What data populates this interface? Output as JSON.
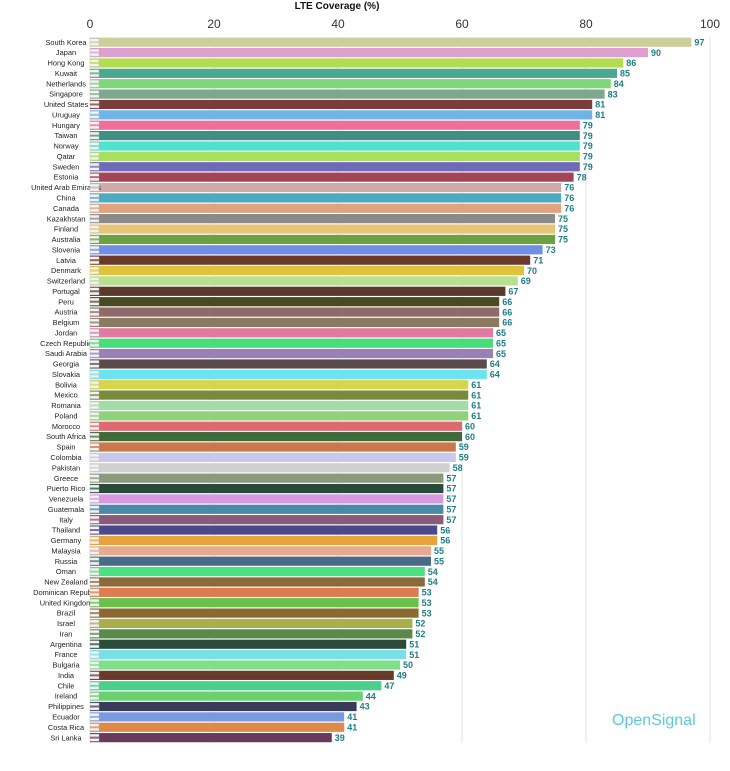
{
  "brand": "OpenSignal",
  "chart_data": {
    "type": "bar",
    "orientation": "horizontal",
    "title": "LTE Coverage (%)",
    "xlim": [
      0,
      100
    ],
    "xticks": [
      0,
      20,
      40,
      60,
      80,
      100
    ],
    "grid": true,
    "categories": [
      "South Korea",
      "Japan",
      "Hong Kong",
      "Kuwait",
      "Netherlands",
      "Singapore",
      "United States",
      "Uruguay",
      "Hungary",
      "Taiwan",
      "Norway",
      "Qatar",
      "Sweden",
      "Estonia",
      "United Arab Emirates",
      "China",
      "Canada",
      "Kazakhstan",
      "Finland",
      "Australia",
      "Slovenia",
      "Latvia",
      "Denmark",
      "Switzerland",
      "Portugal",
      "Peru",
      "Austria",
      "Belgium",
      "Jordan",
      "Czech Republic",
      "Saudi Arabia",
      "Georgia",
      "Slovakia",
      "Bolivia",
      "Mexico",
      "Romania",
      "Poland",
      "Morocco",
      "South Africa",
      "Spain",
      "Colombia",
      "Pakistan",
      "Greece",
      "Puerto Rico",
      "Venezuela",
      "Guatemala",
      "Italy",
      "Thailand",
      "Germany",
      "Malaysia",
      "Russia",
      "Oman",
      "New Zealand",
      "Dominican Republic",
      "United Kingdom",
      "Brazil",
      "Israel",
      "Iran",
      "Argentina",
      "France",
      "Bulgaria",
      "India",
      "Chile",
      "Ireland",
      "Philippines",
      "Ecuador",
      "Costa Rica",
      "Sri Lanka"
    ],
    "values": [
      97,
      90,
      86,
      85,
      84,
      83,
      81,
      81,
      79,
      79,
      79,
      79,
      79,
      78,
      76,
      76,
      76,
      75,
      75,
      75,
      73,
      71,
      70,
      69,
      67,
      66,
      66,
      66,
      65,
      65,
      65,
      64,
      64,
      61,
      61,
      61,
      61,
      60,
      60,
      59,
      59,
      58,
      57,
      57,
      57,
      57,
      57,
      56,
      56,
      55,
      55,
      54,
      54,
      53,
      53,
      53,
      52,
      52,
      51,
      51,
      50,
      49,
      47,
      44,
      43,
      41,
      41,
      39
    ],
    "colors": [
      "#cccf9a",
      "#de9fd0",
      "#b3dd50",
      "#4aa88f",
      "#7fd67a",
      "#7da88d",
      "#7a3e3a",
      "#6eb4e6",
      "#ee6f9a",
      "#3f8f82",
      "#4fe2cf",
      "#a8e05e",
      "#6f6ab8",
      "#a34457",
      "#cfaaa6",
      "#4fa9c1",
      "#e3a27e",
      "#8a8a8a",
      "#e6c57a",
      "#6aa23f",
      "#6f8ee6",
      "#6b3a2a",
      "#e0c23f",
      "#b9e08e",
      "#5a3a2a",
      "#4a4a22",
      "#8f6a6a",
      "#8a7a60",
      "#e07aa0",
      "#47de7a",
      "#9a80b9",
      "#5a4a4a",
      "#6ae4ef",
      "#d4d64c",
      "#7a8a3c",
      "#a3dda6",
      "#8fd27a",
      "#e06870",
      "#3f6a3a",
      "#c8784a",
      "#c9c9ee",
      "#d0d0d0",
      "#8a9a7a",
      "#2a4a3a",
      "#da9ae0",
      "#4a8aa8",
      "#8a5a7a",
      "#4a4a8a",
      "#e6a23c",
      "#e6aa90",
      "#4a6a8a",
      "#4ae080",
      "#8a6a3a",
      "#e07a50",
      "#6ac04a",
      "#8a6a30",
      "#a8b04a",
      "#5a8a4a",
      "#2a4a3a",
      "#7ae0e6",
      "#80e08a",
      "#6a3a2a",
      "#4ad08a",
      "#6ad070",
      "#3a3a5a",
      "#7a9ae0",
      "#e08a4a",
      "#6a3a5a"
    ]
  }
}
